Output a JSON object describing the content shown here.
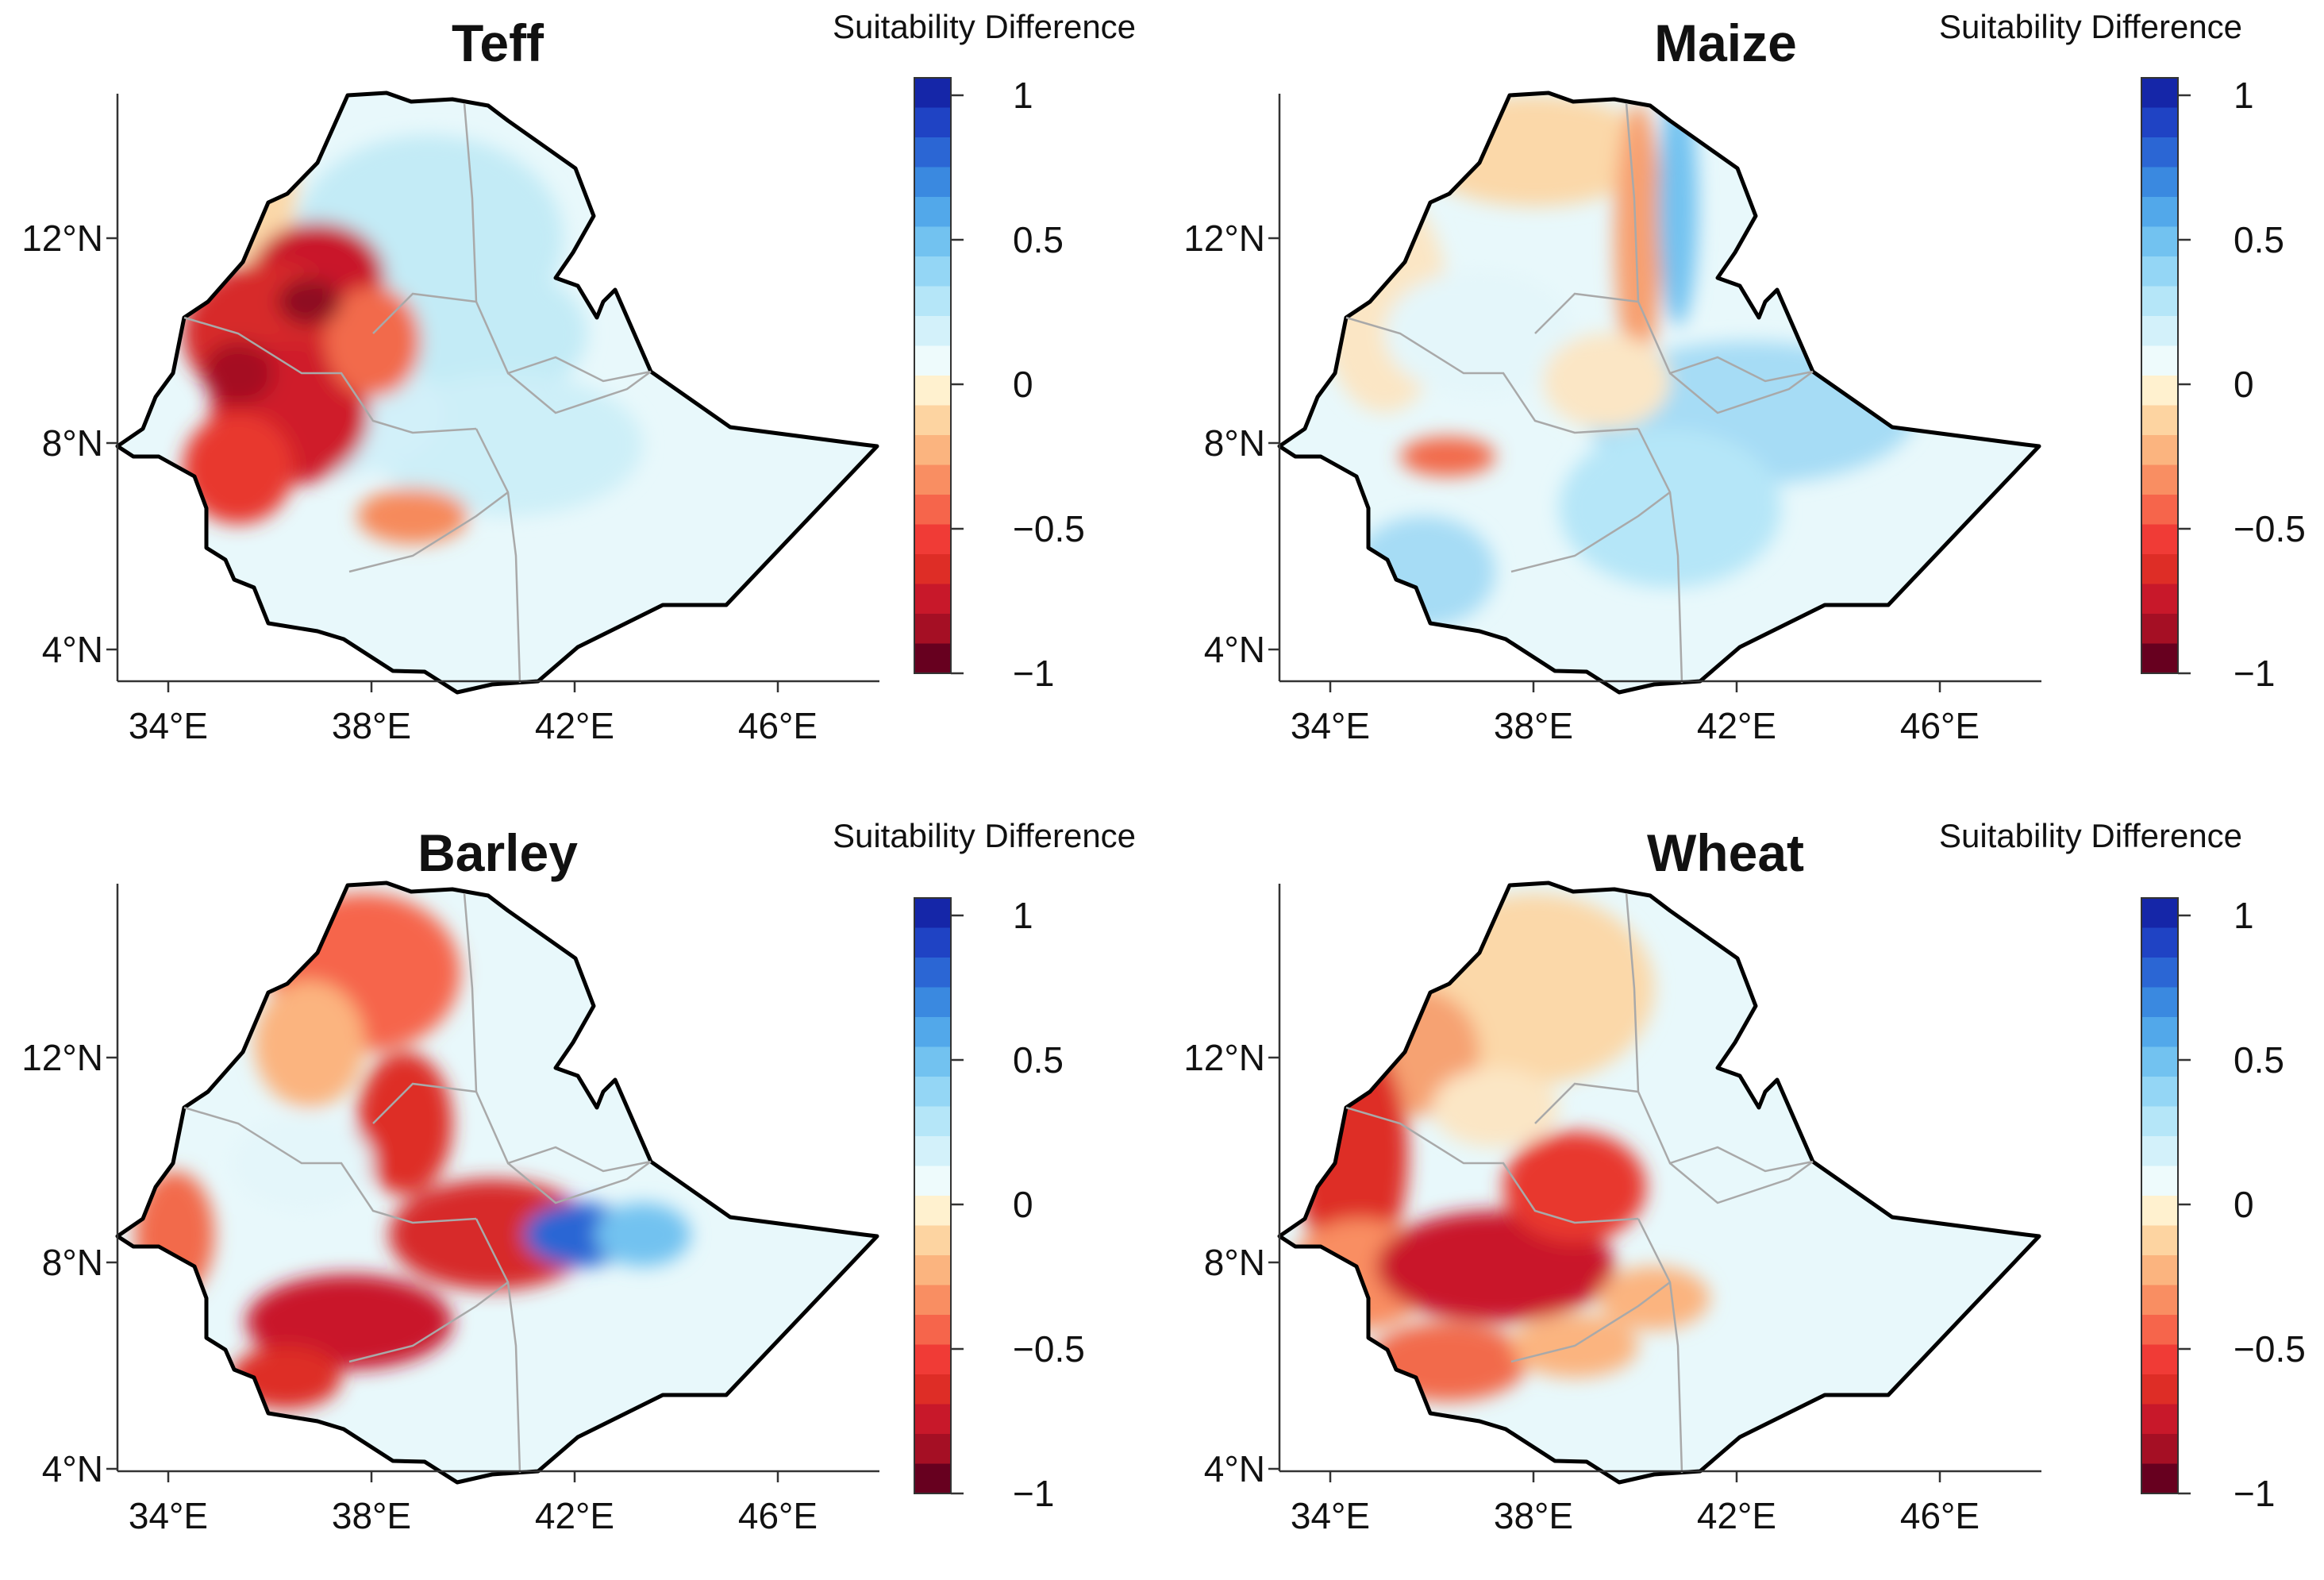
{
  "colorbar": {
    "title": "Suitability Difference",
    "ticks": [
      "1",
      "0.5",
      "0",
      "−0.5",
      "−1"
    ],
    "range": [
      -1,
      1
    ],
    "colors": [
      "#67001f",
      "#a50f24",
      "#c8182a",
      "#de2d26",
      "#f03b36",
      "#f6654b",
      "#f98e62",
      "#fbb47f",
      "#fdd4a1",
      "#fff1cf",
      "#eefbfc",
      "#d3f1fa",
      "#b5e6f8",
      "#94d6f5",
      "#72c2f0",
      "#52a8ea",
      "#3a89e0",
      "#2b66d4",
      "#1f43c4",
      "#1526a8"
    ]
  },
  "axes": {
    "x_ticks": [
      "34°E",
      "38°E",
      "42°E",
      "46°E"
    ],
    "x_values": [
      34,
      38,
      42,
      46
    ],
    "y_ticks": [
      "12°N",
      "8°N",
      "4°N"
    ],
    "y_values": [
      12,
      8,
      4
    ],
    "lon_range": [
      33,
      48
    ],
    "lat_range": [
      3.4,
      14.9
    ]
  },
  "panels": [
    {
      "title": "Teff"
    },
    {
      "title": "Maize"
    },
    {
      "title": "Barley"
    },
    {
      "title": "Wheat"
    }
  ]
}
